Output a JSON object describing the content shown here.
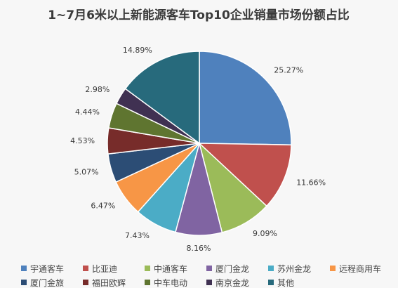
{
  "chart_data": {
    "type": "pie",
    "title": "1~7月6米以上新能源客车Top10企业销量市场份额占比",
    "slices": [
      {
        "name": "宇通客车",
        "value": 25.27,
        "label": "25.27%",
        "color": "#4f81bd"
      },
      {
        "name": "比亚迪",
        "value": 11.66,
        "label": "11.66%",
        "color": "#c0504d"
      },
      {
        "name": "中通客车",
        "value": 9.09,
        "label": "9.09%",
        "color": "#9bbb59"
      },
      {
        "name": "厦门金龙",
        "value": 8.16,
        "label": "8.16%",
        "color": "#8064a2"
      },
      {
        "name": "苏州金龙",
        "value": 7.43,
        "label": "7.43%",
        "color": "#4bacc6"
      },
      {
        "name": "远程商用车",
        "value": 6.47,
        "label": "6.47%",
        "color": "#f79646"
      },
      {
        "name": "厦门金旅",
        "value": 5.07,
        "label": "5.07%",
        "color": "#2c4d75"
      },
      {
        "name": "福田欧辉",
        "value": 4.53,
        "label": "4.53%",
        "color": "#772c2a"
      },
      {
        "name": "中车电动",
        "value": 4.44,
        "label": "4.44%",
        "color": "#5f7530"
      },
      {
        "name": "南京金龙",
        "value": 2.98,
        "label": "2.98%",
        "color": "#403152"
      },
      {
        "name": "其他",
        "value": 14.89,
        "label": "14.89%",
        "color": "#276a7c"
      }
    ],
    "legend_position": "bottom"
  }
}
